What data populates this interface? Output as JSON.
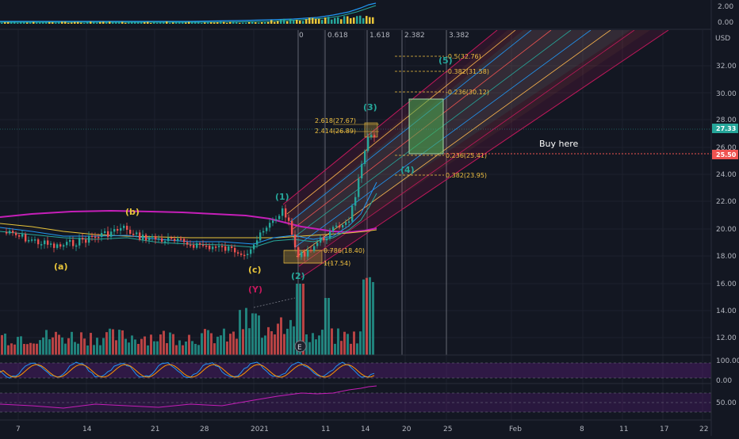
{
  "colors": {
    "background": "#131722",
    "up": "#26a69a",
    "down": "#ef5350",
    "fib": "#f0c040",
    "pitchfork_outer": "#c2185b",
    "pitchfork_mid": "#ffb74d",
    "pitchfork_inner": "#2196f3",
    "wave_green": "#26a69a",
    "wave_yellow": "#e8c53a",
    "wave_red": "#c2185b",
    "ma_magenta": "#c51fb8",
    "buy_line": "#ef5350",
    "last_price_tag": "#26a69a",
    "buy_price_tag": "#ef5350"
  },
  "top_pane": {
    "scale_labels": [
      "0.00",
      "2.00"
    ]
  },
  "price_axis": {
    "labels": [
      "32.00",
      "30.00",
      "28.00",
      "26.00",
      "24.00",
      "22.00",
      "20.00",
      "18.00",
      "16.00",
      "14.00",
      "12.00"
    ],
    "currency": "USD",
    "last_price": "27.33",
    "buy_price": "25.50"
  },
  "osc_axis": {
    "labels": [
      "100.00",
      "0.00"
    ]
  },
  "rsi_axis": {
    "labels": [
      "50.00"
    ]
  },
  "time_axis": {
    "labels": [
      "7",
      "14",
      "21",
      "28",
      "2021",
      "11",
      "14",
      "20",
      "25",
      "Feb",
      "8",
      "11",
      "17",
      "22"
    ]
  },
  "fib_time_zones": [
    "0",
    "0.618",
    "1.618",
    "2.382",
    "3.382"
  ],
  "fib_levels": [
    {
      "label": "-0.5(32.76)"
    },
    {
      "label": "-0.382(31.58)"
    },
    {
      "label": "-0.236(30.12)"
    },
    {
      "label": "0.236(25.41)"
    },
    {
      "label": "0.382(23.95)"
    }
  ],
  "fib_ext_top": [
    "2.618(27.67)",
    "2.414(26.89)"
  ],
  "fib_ext_bottom": [
    "0.786(18.40)",
    "1(17.54)"
  ],
  "waves": {
    "a": "(a)",
    "b": "(b)",
    "c": "(c)",
    "y": "(Y)",
    "w1": "(1)",
    "w2": "(2)",
    "w3": "(3)",
    "w4": "(4)",
    "w5": "(5)"
  },
  "annotation": "Buy here",
  "earnings_marker": "E"
}
